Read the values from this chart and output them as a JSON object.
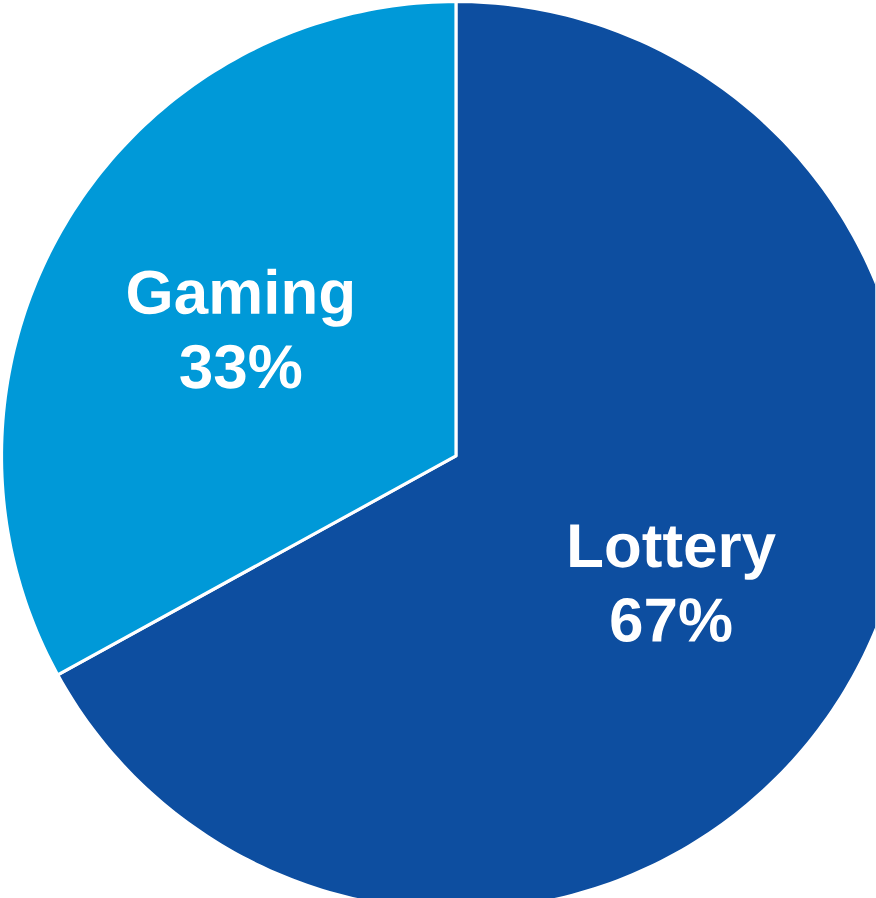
{
  "chart_data": {
    "type": "pie",
    "categories": [
      "Lottery",
      "Gaming"
    ],
    "values": [
      67,
      33
    ],
    "colors": [
      "#0d4ea0",
      "#0099d8"
    ],
    "value_labels": [
      "67%",
      "33%"
    ]
  }
}
